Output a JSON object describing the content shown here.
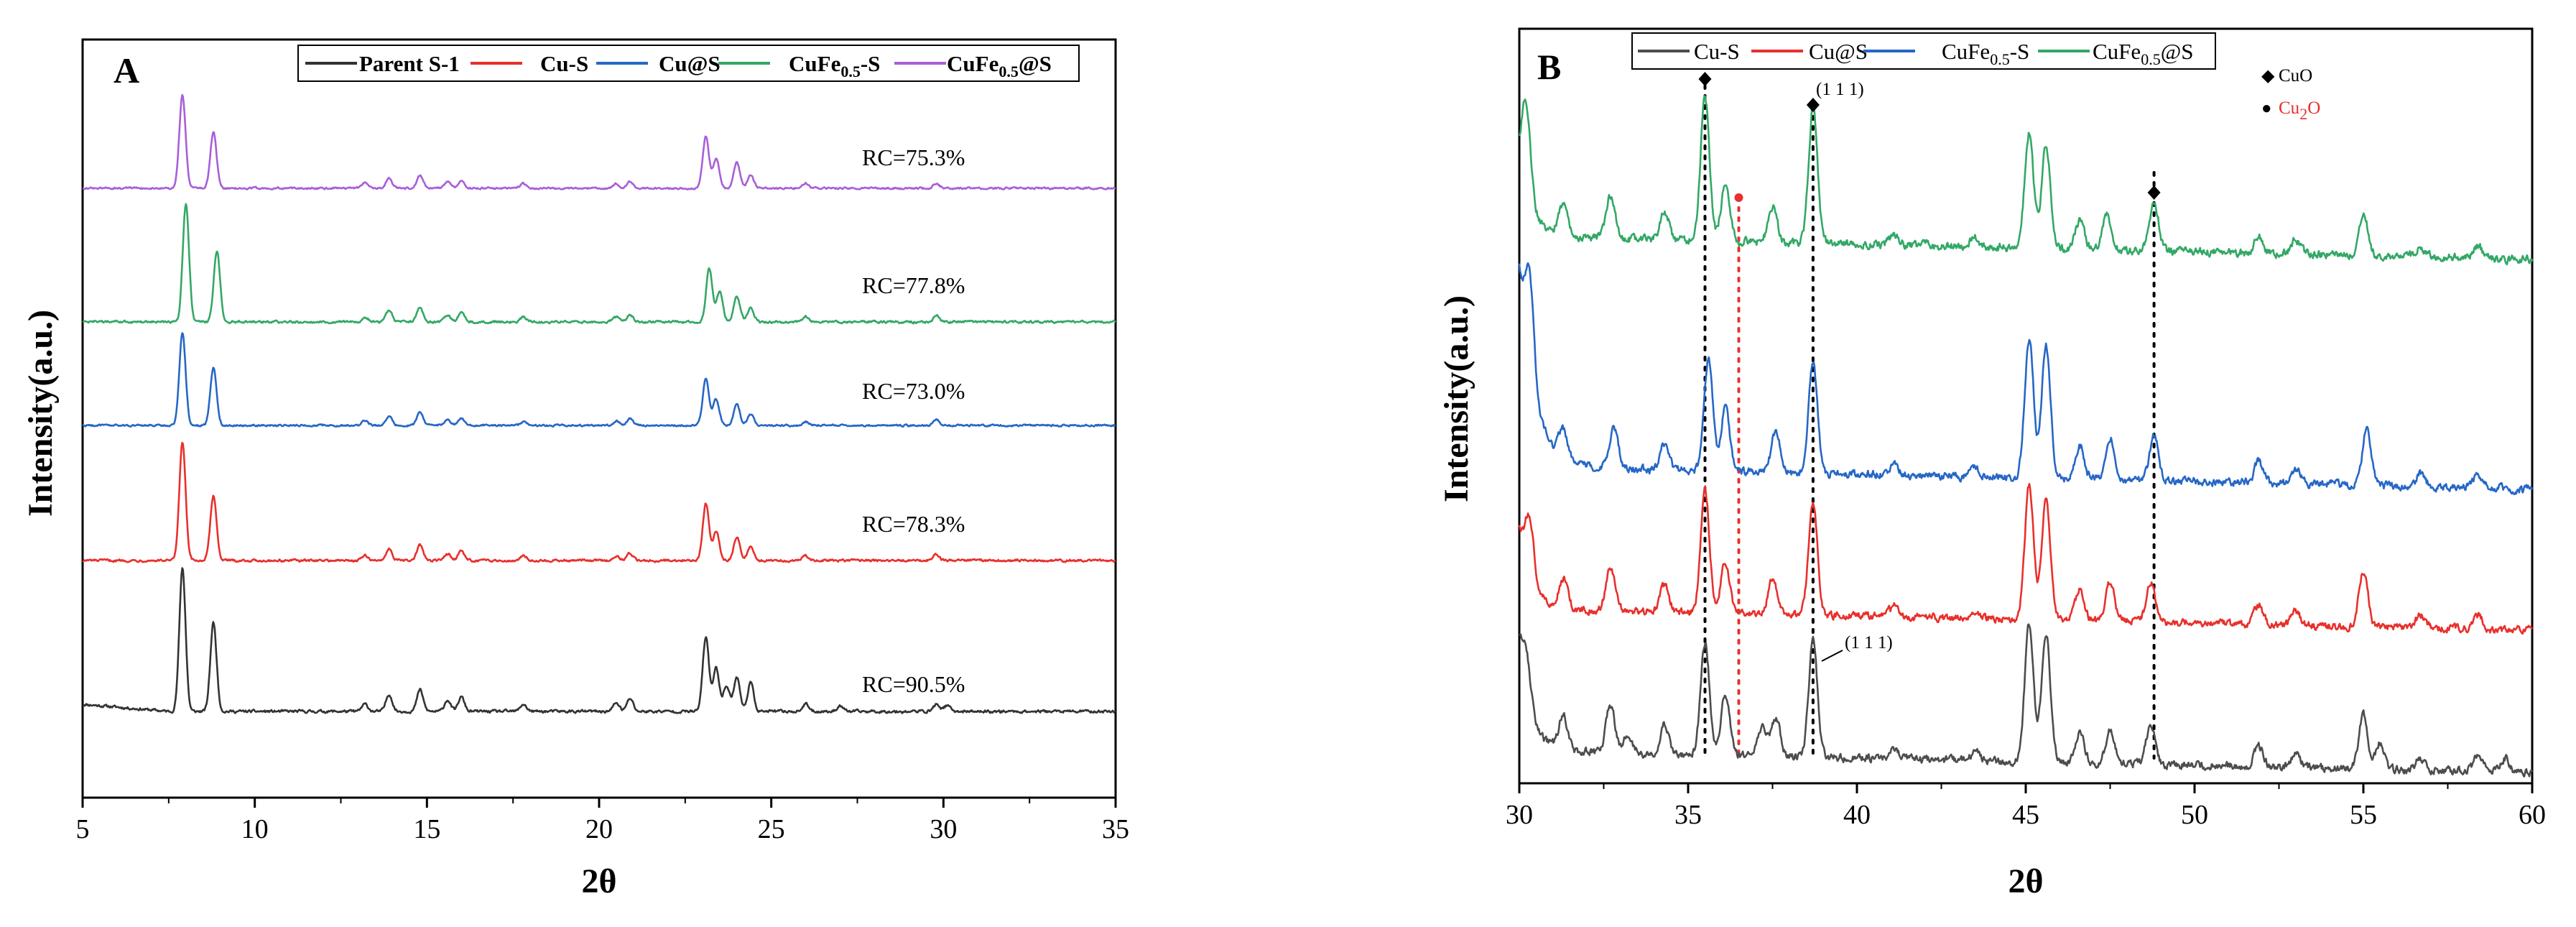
{
  "chart_data": [
    {
      "type": "line",
      "panel": "A",
      "xlabel": "2θ",
      "ylabel": "Intensity(a.u.)",
      "xlim": [
        5,
        35
      ],
      "xticks": [
        5,
        10,
        15,
        20,
        25,
        30,
        35
      ],
      "legend": [
        "Parent S-1",
        "Cu-S",
        "Cu@S",
        "CuFe0.5-S",
        "CuFe0.5@S"
      ],
      "legend_html": [
        "Parent S-1",
        "Cu-S",
        "Cu@S",
        "CuFe<sub>0.5</sub>-S",
        "CuFe<sub>0.5</sub>@S"
      ],
      "series": [
        {
          "name": "Parent S-1",
          "color": "#333333",
          "label": "RC=90.5%",
          "peaks": [
            [
              7.9,
              1.0
            ],
            [
              8.8,
              0.62
            ],
            [
              13.2,
              0.05
            ],
            [
              13.9,
              0.12
            ],
            [
              14.8,
              0.15
            ],
            [
              15.6,
              0.08
            ],
            [
              16.0,
              0.1
            ],
            [
              17.8,
              0.05
            ],
            [
              20.5,
              0.06
            ],
            [
              20.9,
              0.09
            ],
            [
              23.1,
              0.52
            ],
            [
              23.4,
              0.3
            ],
            [
              23.7,
              0.18
            ],
            [
              24.0,
              0.24
            ],
            [
              24.4,
              0.2
            ],
            [
              26.0,
              0.05
            ],
            [
              27.0,
              0.04
            ],
            [
              29.8,
              0.05
            ],
            [
              30.1,
              0.04
            ]
          ]
        },
        {
          "name": "Cu-S",
          "color": "#e8302c",
          "label": "RC=78.3%",
          "peaks": [
            [
              7.9,
              1.0
            ],
            [
              8.8,
              0.55
            ],
            [
              13.2,
              0.04
            ],
            [
              13.9,
              0.1
            ],
            [
              14.8,
              0.13
            ],
            [
              15.6,
              0.06
            ],
            [
              16.0,
              0.08
            ],
            [
              17.8,
              0.04
            ],
            [
              20.5,
              0.04
            ],
            [
              20.9,
              0.06
            ],
            [
              23.1,
              0.48
            ],
            [
              23.4,
              0.25
            ],
            [
              24.0,
              0.2
            ],
            [
              24.4,
              0.12
            ],
            [
              26.0,
              0.04
            ],
            [
              29.8,
              0.05
            ]
          ]
        },
        {
          "name": "Cu@S",
          "color": "#2667c6",
          "label": "RC=73.0%",
          "peaks": [
            [
              7.9,
              1.0
            ],
            [
              8.8,
              0.62
            ],
            [
              13.2,
              0.05
            ],
            [
              13.9,
              0.1
            ],
            [
              14.8,
              0.14
            ],
            [
              15.6,
              0.06
            ],
            [
              16.0,
              0.08
            ],
            [
              17.8,
              0.04
            ],
            [
              20.5,
              0.05
            ],
            [
              20.9,
              0.07
            ],
            [
              23.1,
              0.5
            ],
            [
              23.4,
              0.28
            ],
            [
              24.0,
              0.22
            ],
            [
              24.4,
              0.12
            ],
            [
              26.0,
              0.04
            ],
            [
              29.8,
              0.06
            ]
          ]
        },
        {
          "name": "CuFe0.5-S",
          "color": "#33a866",
          "label": "RC=77.8%",
          "peaks": [
            [
              8.0,
              1.0
            ],
            [
              8.9,
              0.6
            ],
            [
              13.2,
              0.04
            ],
            [
              13.9,
              0.1
            ],
            [
              14.8,
              0.12
            ],
            [
              15.6,
              0.06
            ],
            [
              16.0,
              0.08
            ],
            [
              17.8,
              0.04
            ],
            [
              20.5,
              0.04
            ],
            [
              20.9,
              0.06
            ],
            [
              23.2,
              0.45
            ],
            [
              23.5,
              0.25
            ],
            [
              24.0,
              0.22
            ],
            [
              24.4,
              0.12
            ],
            [
              26.0,
              0.04
            ],
            [
              29.8,
              0.05
            ]
          ]
        },
        {
          "name": "CuFe0.5@S",
          "color": "#a85fd8",
          "label": "RC=75.3%",
          "peaks": [
            [
              7.9,
              1.0
            ],
            [
              8.8,
              0.6
            ],
            [
              13.2,
              0.06
            ],
            [
              13.9,
              0.1
            ],
            [
              14.8,
              0.14
            ],
            [
              15.6,
              0.07
            ],
            [
              16.0,
              0.08
            ],
            [
              17.8,
              0.05
            ],
            [
              20.5,
              0.05
            ],
            [
              20.9,
              0.07
            ],
            [
              23.1,
              0.55
            ],
            [
              23.4,
              0.32
            ],
            [
              24.0,
              0.28
            ],
            [
              24.4,
              0.14
            ],
            [
              26.0,
              0.05
            ],
            [
              29.8,
              0.05
            ]
          ]
        }
      ]
    },
    {
      "type": "line",
      "panel": "B",
      "xlabel": "2θ",
      "ylabel": "Intensity(a.u.)",
      "xlim": [
        30,
        60
      ],
      "xticks": [
        30,
        35,
        40,
        45,
        50,
        55,
        60
      ],
      "legend": [
        "Cu-S",
        "Cu@S",
        "CuFe0.5-S",
        "CuFe0.5@S"
      ],
      "legend_html": [
        "Cu-S",
        "Cu@S",
        "CuFe<sub>0.5</sub>-S",
        "CuFe<sub>0.5</sub>@S"
      ],
      "phase_legend": [
        {
          "symbol": "◆",
          "text": "CuO",
          "text_html": "CuO",
          "color": "#000000"
        },
        {
          "symbol": "●",
          "text": "Cu2O",
          "text_html": "Cu<sub>2</sub>O",
          "color": "#e8302c"
        }
      ],
      "annotations": [
        "(1 1 1)",
        "(1 1 1)"
      ],
      "reference_lines": [
        {
          "x": 35.5,
          "phase": "CuO"
        },
        {
          "x": 36.5,
          "phase": "Cu2O"
        },
        {
          "x": 38.7,
          "phase": "CuO"
        },
        {
          "x": 48.8,
          "phase": "CuO"
        }
      ],
      "series": [
        {
          "name": "Cu-S",
          "color": "#4d4d4d",
          "peaks": [
            [
              30.2,
              0.35
            ],
            [
              31.3,
              0.25
            ],
            [
              32.7,
              0.35
            ],
            [
              33.2,
              0.12
            ],
            [
              34.3,
              0.22
            ],
            [
              35.5,
              0.82
            ],
            [
              36.1,
              0.45
            ],
            [
              37.2,
              0.2
            ],
            [
              37.6,
              0.28
            ],
            [
              38.7,
              0.85
            ],
            [
              41.1,
              0.08
            ],
            [
              43.5,
              0.06
            ],
            [
              45.1,
              1.0
            ],
            [
              45.6,
              0.95
            ],
            [
              46.6,
              0.22
            ],
            [
              47.5,
              0.25
            ],
            [
              48.7,
              0.3
            ],
            [
              51.9,
              0.15
            ],
            [
              53.0,
              0.1
            ],
            [
              55.0,
              0.4
            ],
            [
              55.5,
              0.2
            ],
            [
              56.7,
              0.1
            ],
            [
              58.4,
              0.12
            ],
            [
              59.2,
              0.1
            ]
          ]
        },
        {
          "name": "Cu@S",
          "color": "#e8302c",
          "peaks": [
            [
              30.3,
              0.45
            ],
            [
              31.3,
              0.22
            ],
            [
              32.7,
              0.33
            ],
            [
              34.3,
              0.2
            ],
            [
              35.5,
              0.92
            ],
            [
              36.1,
              0.4
            ],
            [
              37.5,
              0.28
            ],
            [
              38.7,
              0.85
            ],
            [
              41.1,
              0.08
            ],
            [
              43.5,
              0.06
            ],
            [
              45.1,
              1.0
            ],
            [
              45.6,
              0.9
            ],
            [
              46.6,
              0.24
            ],
            [
              47.5,
              0.3
            ],
            [
              48.7,
              0.3
            ],
            [
              51.9,
              0.15
            ],
            [
              53.0,
              0.1
            ],
            [
              55.0,
              0.42
            ],
            [
              56.7,
              0.1
            ],
            [
              58.4,
              0.1
            ]
          ]
        },
        {
          "name": "CuFe0.5-S",
          "color": "#2667c6",
          "peaks": [
            [
              30.3,
              0.7
            ],
            [
              31.3,
              0.2
            ],
            [
              32.8,
              0.3
            ],
            [
              34.3,
              0.2
            ],
            [
              35.6,
              0.8
            ],
            [
              36.1,
              0.45
            ],
            [
              37.6,
              0.3
            ],
            [
              38.7,
              0.8
            ],
            [
              41.1,
              0.08
            ],
            [
              43.5,
              0.06
            ],
            [
              45.1,
              1.0
            ],
            [
              45.6,
              0.95
            ],
            [
              46.6,
              0.24
            ],
            [
              47.5,
              0.3
            ],
            [
              48.8,
              0.32
            ],
            [
              51.9,
              0.15
            ],
            [
              53.0,
              0.1
            ],
            [
              55.1,
              0.4
            ],
            [
              56.7,
              0.1
            ],
            [
              58.4,
              0.1
            ]
          ]
        },
        {
          "name": "CuFe0.5@S",
          "color": "#33a866",
          "peaks": [
            [
              30.2,
              0.65
            ],
            [
              31.3,
              0.22
            ],
            [
              32.7,
              0.3
            ],
            [
              34.3,
              0.2
            ],
            [
              35.5,
              1.0
            ],
            [
              36.1,
              0.38
            ],
            [
              37.5,
              0.25
            ],
            [
              38.7,
              0.95
            ],
            [
              41.1,
              0.08
            ],
            [
              43.5,
              0.06
            ],
            [
              45.1,
              0.8
            ],
            [
              45.6,
              0.72
            ],
            [
              46.6,
              0.2
            ],
            [
              47.4,
              0.25
            ],
            [
              48.8,
              0.35
            ],
            [
              51.9,
              0.12
            ],
            [
              53.0,
              0.1
            ],
            [
              55.0,
              0.3
            ],
            [
              56.7,
              0.08
            ],
            [
              58.4,
              0.08
            ]
          ]
        }
      ]
    }
  ]
}
